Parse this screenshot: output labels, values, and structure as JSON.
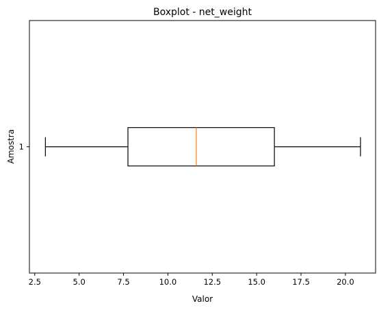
{
  "chart_data": {
    "type": "boxplot",
    "orientation": "horizontal",
    "title": "Boxplot - net_weight",
    "xlabel": "Valor",
    "ylabel": "Amostra",
    "xlim": [
      2.2,
      21.7
    ],
    "x_ticks": [
      2.5,
      5.0,
      7.5,
      10.0,
      12.5,
      15.0,
      17.5,
      20.0
    ],
    "x_tick_labels": [
      "2.5",
      "5.0",
      "7.5",
      "10.0",
      "12.5",
      "15.0",
      "17.5",
      "20.0"
    ],
    "categories": [
      "1"
    ],
    "boxes": [
      {
        "category": "1",
        "whislo": 3.1,
        "q1": 7.75,
        "median": 11.6,
        "q3": 16.0,
        "whishi": 20.85
      }
    ],
    "colors": {
      "box": "#000000",
      "median": "#ff7f0e",
      "axes": "#000000"
    },
    "grid": false,
    "legend": "none"
  }
}
